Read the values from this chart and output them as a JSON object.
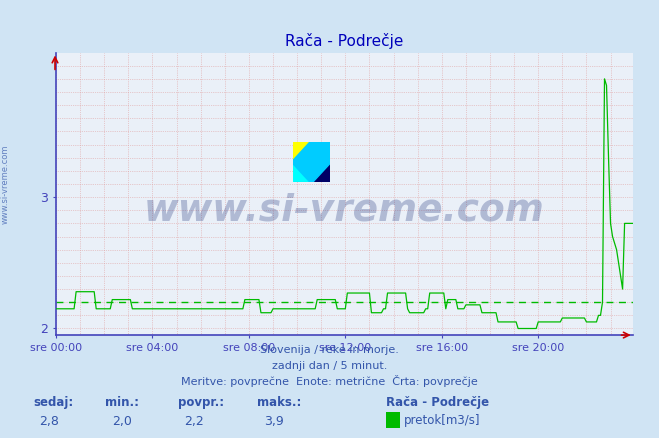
{
  "title": "Rača - Podrečje",
  "title_color": "#0000bb",
  "bg_color": "#d0e4f4",
  "plot_bg_color": "#eaf0f8",
  "grid_color": "#e0a0a0",
  "axis_color": "#4444bb",
  "line_color": "#00bb00",
  "avg_line_color": "#00bb00",
  "ylim": [
    1.95,
    4.1
  ],
  "yticks": [
    2,
    3
  ],
  "xlabel_color": "#3355aa",
  "text_color": "#3355aa",
  "xtick_labels": [
    "sre 00:00",
    "sre 04:00",
    "sre 08:00",
    "sre 12:00",
    "sre 16:00",
    "sre 20:00"
  ],
  "xtick_positions": [
    0,
    48,
    96,
    144,
    192,
    240
  ],
  "total_points": 288,
  "avg_value": 2.2,
  "min_value": 2.0,
  "max_value": 3.9,
  "current_value": 2.8,
  "footer_line1": "Slovenija / reke in morje.",
  "footer_line2": "zadnji dan / 5 minut.",
  "footer_line3": "Meritve: povprečne  Enote: metrične  Črta: povprečje",
  "legend_station": "Rača - Podrečje",
  "legend_series": "pretok[m3/s]",
  "stat_labels": [
    "sedaj:",
    "min.:",
    "povpr.:",
    "maks.:"
  ],
  "stat_values": [
    "2,8",
    "2,0",
    "2,2",
    "3,9"
  ],
  "watermark_text": "www.si-vreme.com",
  "watermark_color": "#1a2e7a",
  "side_watermark_color": "#3355aa"
}
